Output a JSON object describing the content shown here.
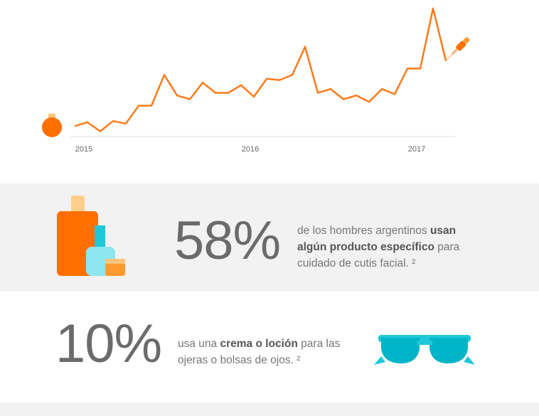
{
  "chart_data": {
    "type": "line",
    "color": "#ff7a1a",
    "categories": [
      null,
      "2015",
      null,
      null,
      null,
      null,
      null,
      null,
      null,
      null,
      null,
      null,
      null,
      null,
      "2016",
      null,
      null,
      null,
      null,
      null,
      null,
      null,
      null,
      null,
      null,
      null,
      null,
      "2017",
      null,
      null
    ],
    "values": [
      7,
      10,
      3,
      11,
      9,
      23,
      23,
      47,
      31,
      28,
      41,
      33,
      33,
      39,
      30,
      44,
      43,
      47,
      69,
      33,
      36,
      28,
      31,
      26,
      36,
      32,
      52,
      52,
      99,
      58
    ],
    "ylim": [
      0,
      100
    ]
  },
  "stats": [
    {
      "figure": "58%",
      "before": "de los hombres argentinos ",
      "bold": "usan algún producto específico",
      "after": " para cuidado de cutis facial. ²"
    },
    {
      "figure": "10%",
      "before": "usa una ",
      "bold": "crema o loción",
      "after": " para las ojeras o bolsas de ojos. ²"
    }
  ]
}
